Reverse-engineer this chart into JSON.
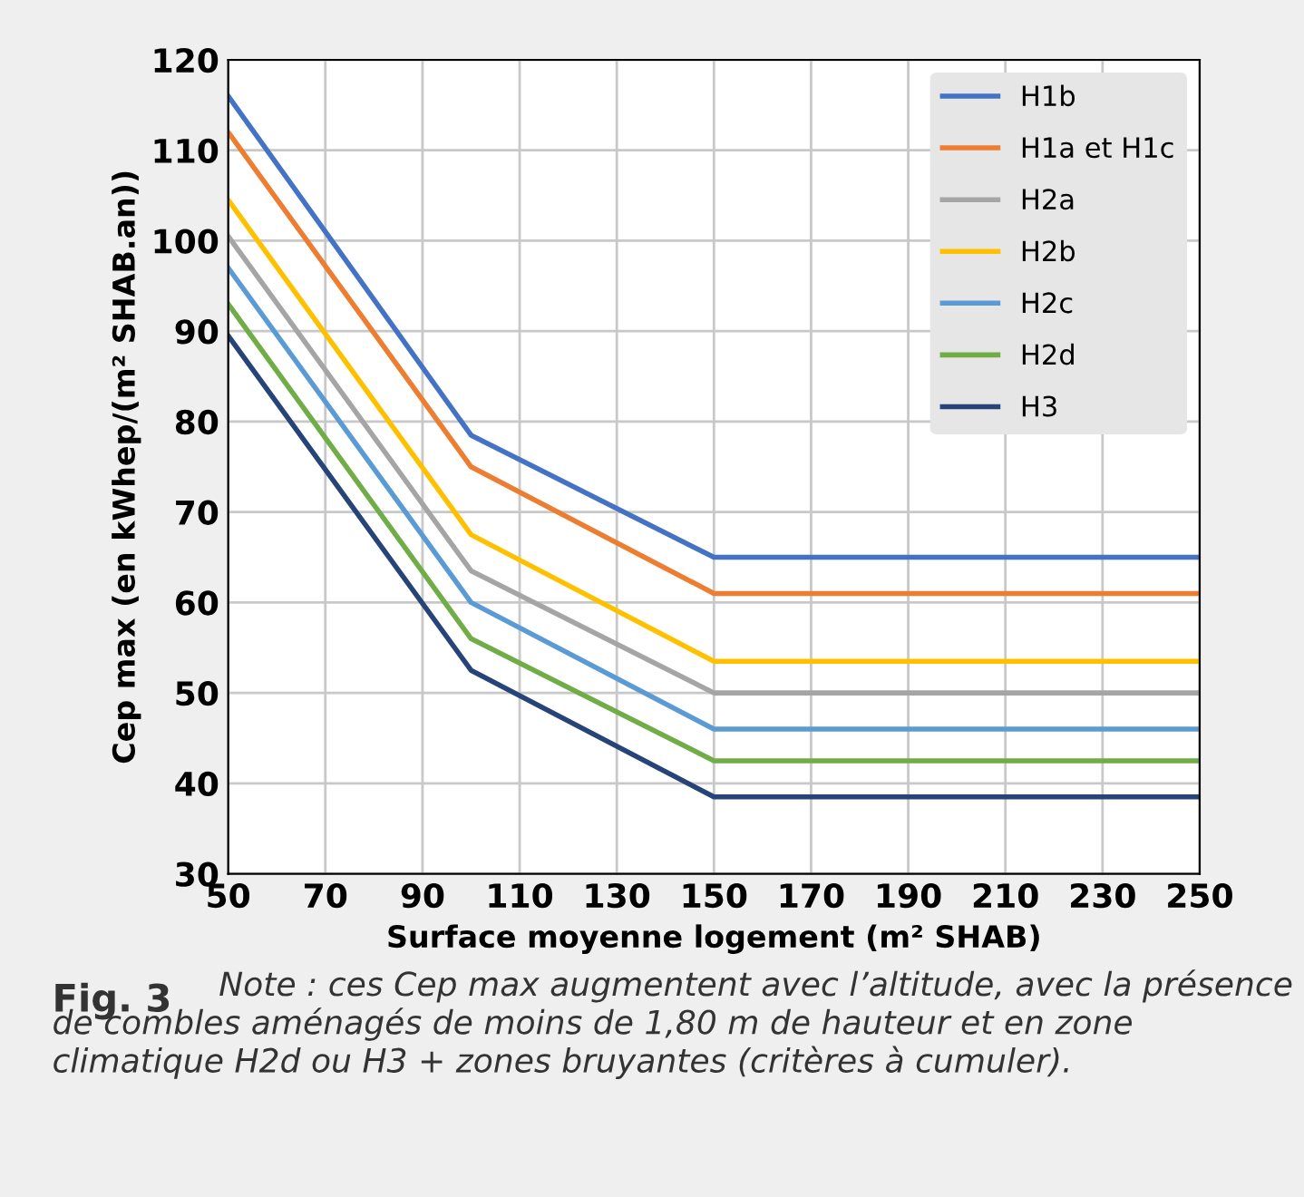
{
  "chart_data": {
    "type": "line",
    "xlabel": "Surface moyenne logement (m² SHAB)",
    "ylabel": "Cep max (en kWhep/(m² SHAB.an))",
    "x": [
      50,
      100,
      150,
      250
    ],
    "series": [
      {
        "name": "H1b",
        "color": "#4472c4",
        "values": [
          116,
          78.5,
          65,
          65
        ]
      },
      {
        "name": "H1a et H1c",
        "color": "#ed7d31",
        "values": [
          112,
          75,
          61,
          61
        ]
      },
      {
        "name": "H2a",
        "color": "#a5a5a5",
        "values": [
          100.5,
          63.5,
          50,
          50
        ]
      },
      {
        "name": "H2b",
        "color": "#ffc000",
        "values": [
          104.5,
          67.5,
          53.5,
          53.5
        ]
      },
      {
        "name": "H2c",
        "color": "#5b9bd5",
        "values": [
          97,
          60,
          46,
          46
        ]
      },
      {
        "name": "H2d",
        "color": "#70ad47",
        "values": [
          93,
          56,
          42.5,
          42.5
        ]
      },
      {
        "name": "H3",
        "color": "#264478",
        "values": [
          89.5,
          52.5,
          38.5,
          38.5
        ]
      }
    ],
    "xlim": [
      50,
      250
    ],
    "xticks": [
      50,
      70,
      90,
      110,
      130,
      150,
      170,
      190,
      210,
      230,
      250
    ],
    "ylim": [
      30,
      120
    ],
    "yticks": [
      30,
      40,
      50,
      60,
      70,
      80,
      90,
      100,
      110,
      120
    ],
    "grid": true,
    "legend": "top right",
    "marker": "none",
    "line_style": "solid",
    "annotations": [
      "Fig. 3",
      "Note : ces Cep max augmentent avec l’altitude, avec la présence de combles aménagés de moins de 1,80 m de hauteur et en zone climatique H2d ou H3 + zones bruyantes (critères à cumuler)."
    ]
  }
}
